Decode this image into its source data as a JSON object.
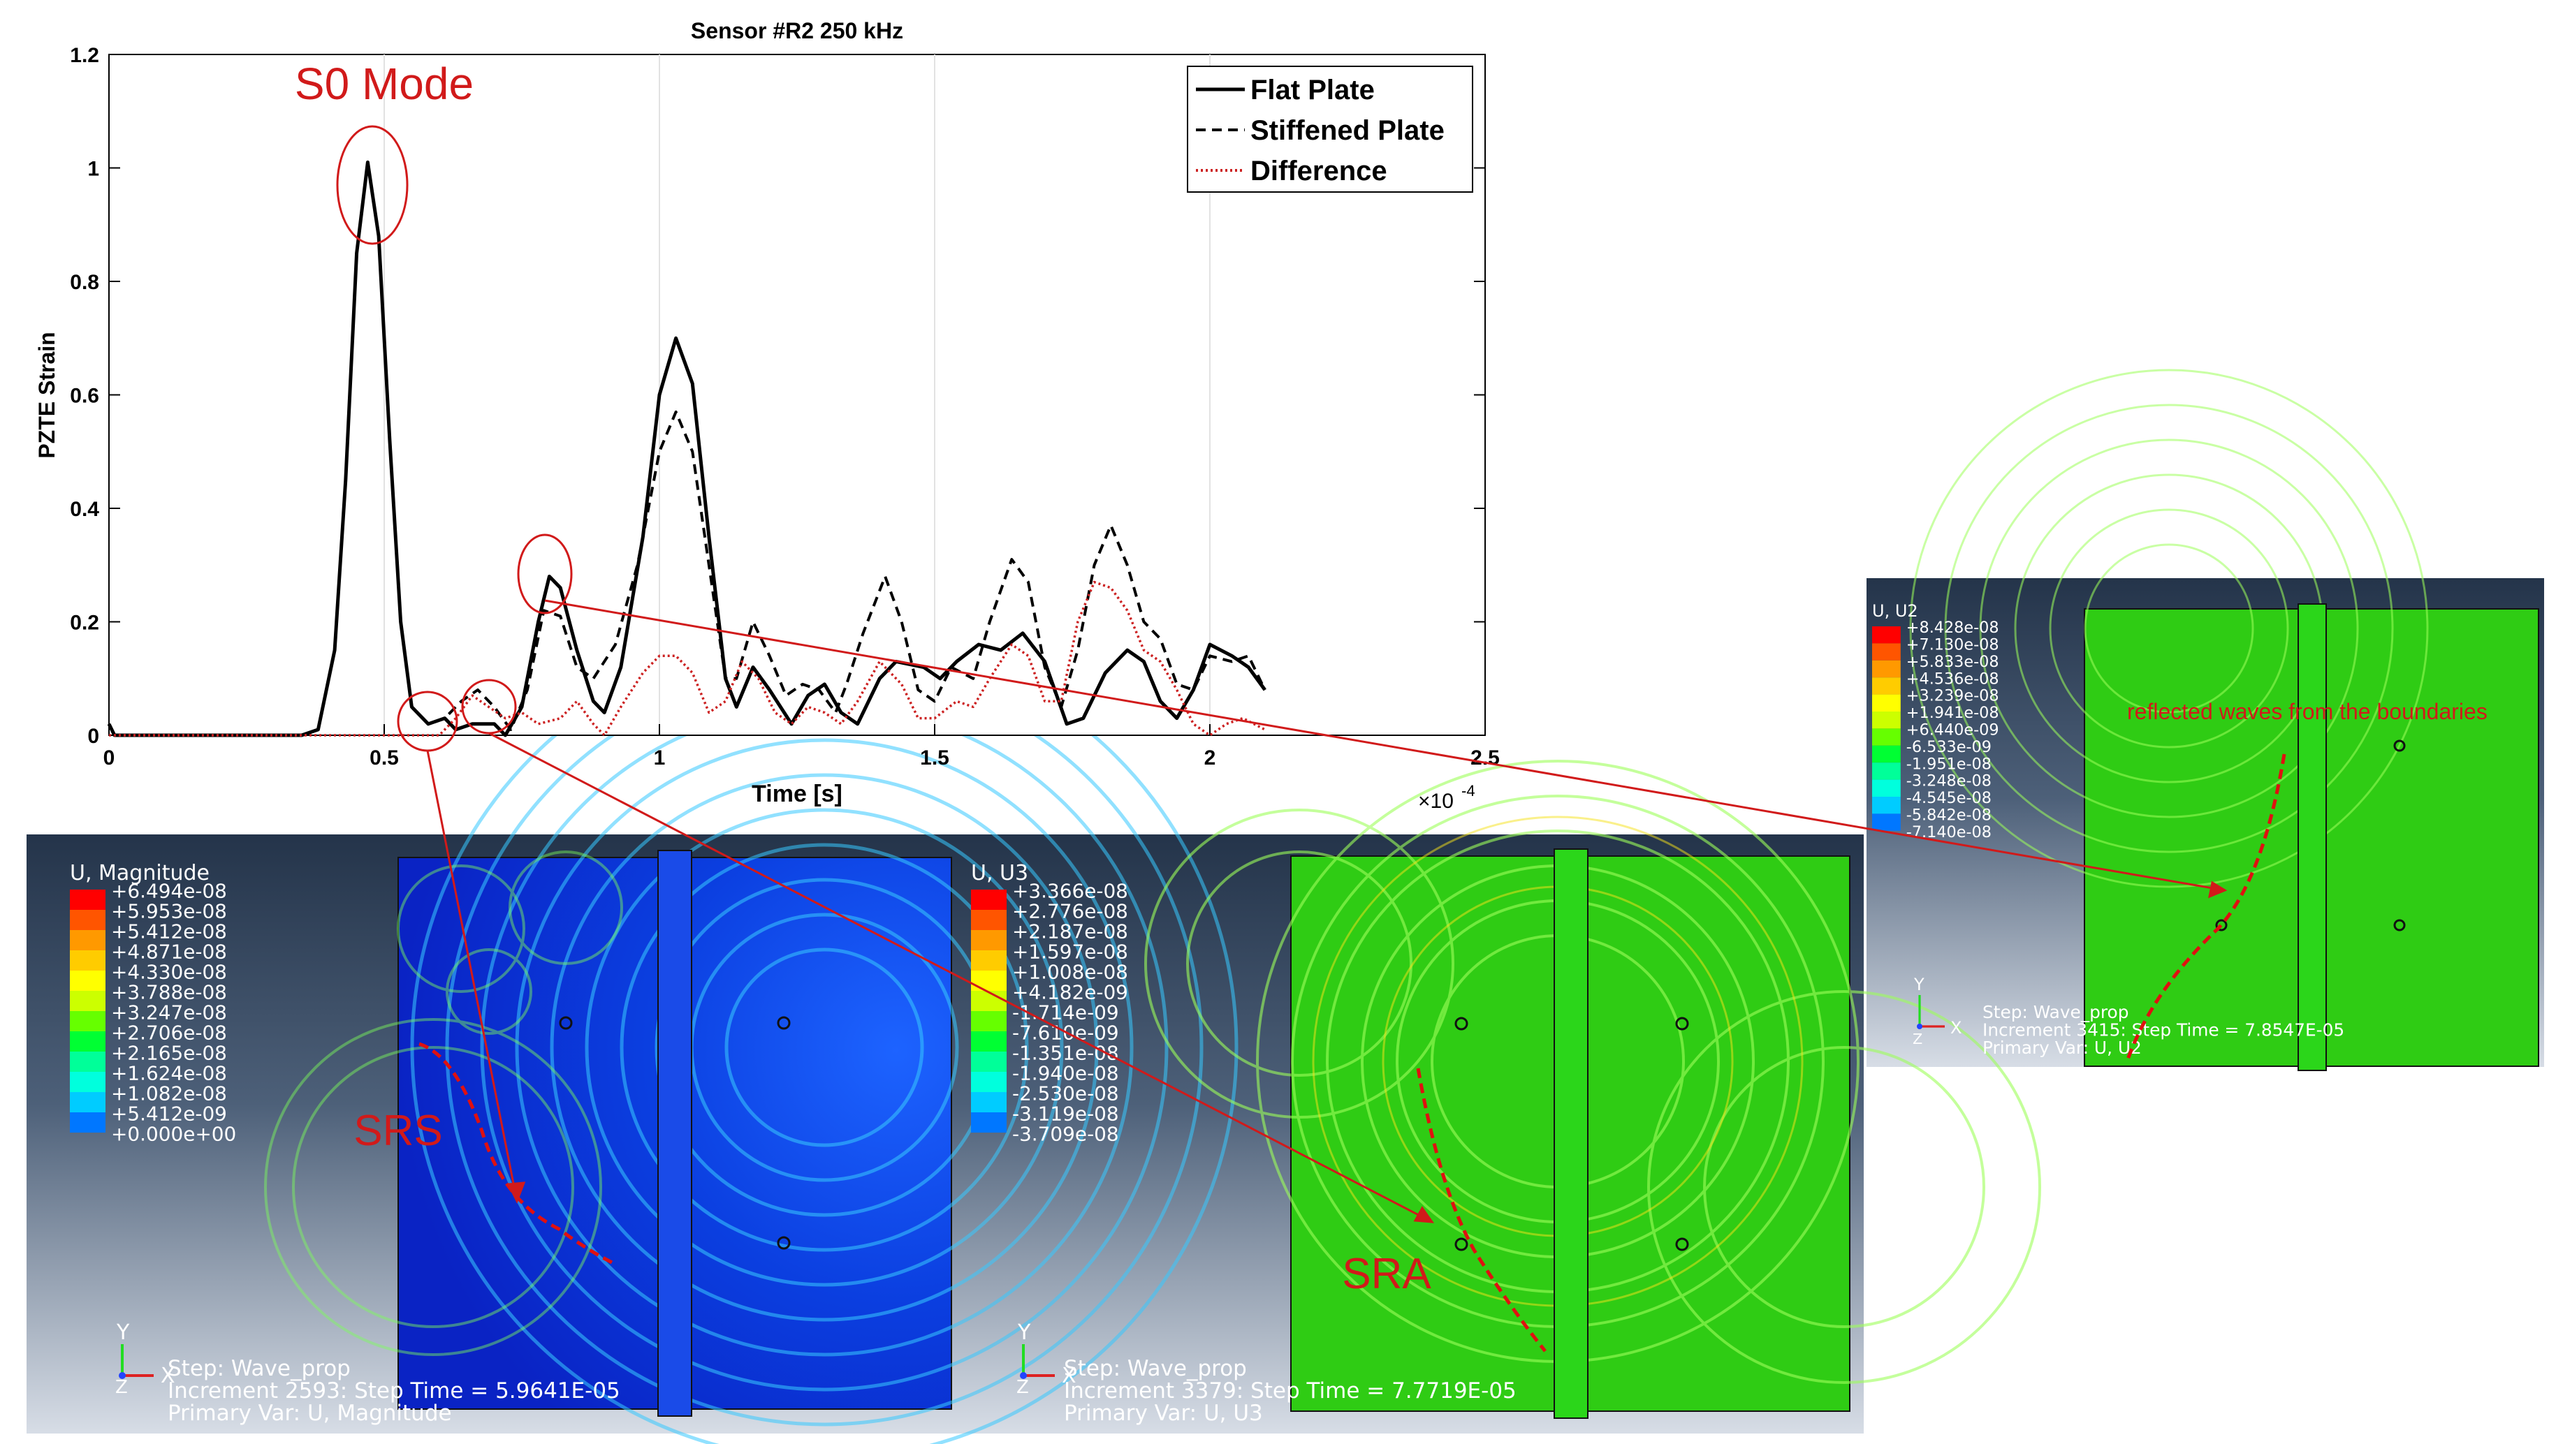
{
  "chart_data": {
    "type": "line",
    "title": "Sensor #R2 250 kHz",
    "xlabel": "Time [s]",
    "ylabel": "PZTE Strain",
    "x_exponent_label": "×10",
    "x_exponent_power": "-4",
    "xlim": [
      0,
      2.5
    ],
    "ylim": [
      0,
      1.2
    ],
    "xticks": [
      0,
      0.5,
      1,
      1.5,
      2,
      2.5
    ],
    "xtick_labels": [
      "0",
      "0.5",
      "1",
      "1.5",
      "2",
      "2.5"
    ],
    "yticks": [
      0,
      0.2,
      0.4,
      0.6,
      0.8,
      1,
      1.2
    ],
    "ytick_labels": [
      "0",
      "0.2",
      "0.4",
      "0.6",
      "0.8",
      "1",
      "1.2"
    ],
    "grid": "x",
    "legend_position": "top-right",
    "series": [
      {
        "name": "Flat Plate",
        "color": "#000000",
        "style": "solid",
        "points": [
          [
            0,
            0.02
          ],
          [
            0.01,
            0.0
          ],
          [
            0.2,
            0.0
          ],
          [
            0.35,
            0.0
          ],
          [
            0.38,
            0.01
          ],
          [
            0.41,
            0.15
          ],
          [
            0.43,
            0.45
          ],
          [
            0.45,
            0.85
          ],
          [
            0.47,
            1.01
          ],
          [
            0.49,
            0.88
          ],
          [
            0.51,
            0.52
          ],
          [
            0.53,
            0.2
          ],
          [
            0.55,
            0.05
          ],
          [
            0.58,
            0.02
          ],
          [
            0.61,
            0.03
          ],
          [
            0.63,
            0.01
          ],
          [
            0.66,
            0.02
          ],
          [
            0.7,
            0.02
          ],
          [
            0.72,
            0.0
          ],
          [
            0.75,
            0.05
          ],
          [
            0.78,
            0.2
          ],
          [
            0.8,
            0.28
          ],
          [
            0.82,
            0.26
          ],
          [
            0.85,
            0.15
          ],
          [
            0.88,
            0.06
          ],
          [
            0.9,
            0.04
          ],
          [
            0.93,
            0.12
          ],
          [
            0.97,
            0.35
          ],
          [
            1.0,
            0.6
          ],
          [
            1.03,
            0.7
          ],
          [
            1.06,
            0.62
          ],
          [
            1.09,
            0.35
          ],
          [
            1.12,
            0.1
          ],
          [
            1.14,
            0.05
          ],
          [
            1.17,
            0.12
          ],
          [
            1.2,
            0.08
          ],
          [
            1.24,
            0.02
          ],
          [
            1.27,
            0.07
          ],
          [
            1.3,
            0.09
          ],
          [
            1.33,
            0.04
          ],
          [
            1.36,
            0.02
          ],
          [
            1.4,
            0.1
          ],
          [
            1.43,
            0.13
          ],
          [
            1.48,
            0.12
          ],
          [
            1.51,
            0.1
          ],
          [
            1.54,
            0.13
          ],
          [
            1.58,
            0.16
          ],
          [
            1.62,
            0.15
          ],
          [
            1.66,
            0.18
          ],
          [
            1.7,
            0.13
          ],
          [
            1.74,
            0.02
          ],
          [
            1.77,
            0.03
          ],
          [
            1.81,
            0.11
          ],
          [
            1.85,
            0.15
          ],
          [
            1.88,
            0.13
          ],
          [
            1.91,
            0.06
          ],
          [
            1.94,
            0.03
          ],
          [
            1.97,
            0.08
          ],
          [
            2.0,
            0.16
          ],
          [
            2.04,
            0.14
          ],
          [
            2.07,
            0.12
          ],
          [
            2.1,
            0.08
          ]
        ]
      },
      {
        "name": "Stiffened Plate",
        "color": "#000000",
        "style": "dashed",
        "points": [
          [
            0,
            0.02
          ],
          [
            0.01,
            0.0
          ],
          [
            0.2,
            0.0
          ],
          [
            0.35,
            0.0
          ],
          [
            0.38,
            0.01
          ],
          [
            0.41,
            0.15
          ],
          [
            0.43,
            0.45
          ],
          [
            0.45,
            0.85
          ],
          [
            0.47,
            1.01
          ],
          [
            0.49,
            0.88
          ],
          [
            0.51,
            0.52
          ],
          [
            0.53,
            0.2
          ],
          [
            0.55,
            0.05
          ],
          [
            0.58,
            0.02
          ],
          [
            0.61,
            0.03
          ],
          [
            0.64,
            0.06
          ],
          [
            0.67,
            0.08
          ],
          [
            0.7,
            0.05
          ],
          [
            0.73,
            0.01
          ],
          [
            0.76,
            0.08
          ],
          [
            0.79,
            0.22
          ],
          [
            0.82,
            0.21
          ],
          [
            0.85,
            0.12
          ],
          [
            0.88,
            0.1
          ],
          [
            0.92,
            0.16
          ],
          [
            0.96,
            0.3
          ],
          [
            1.0,
            0.5
          ],
          [
            1.03,
            0.57
          ],
          [
            1.06,
            0.5
          ],
          [
            1.09,
            0.3
          ],
          [
            1.12,
            0.1
          ],
          [
            1.14,
            0.1
          ],
          [
            1.17,
            0.2
          ],
          [
            1.2,
            0.14
          ],
          [
            1.23,
            0.07
          ],
          [
            1.26,
            0.09
          ],
          [
            1.29,
            0.08
          ],
          [
            1.32,
            0.04
          ],
          [
            1.34,
            0.09
          ],
          [
            1.37,
            0.18
          ],
          [
            1.41,
            0.28
          ],
          [
            1.44,
            0.2
          ],
          [
            1.47,
            0.08
          ],
          [
            1.5,
            0.06
          ],
          [
            1.53,
            0.12
          ],
          [
            1.57,
            0.1
          ],
          [
            1.6,
            0.2
          ],
          [
            1.64,
            0.31
          ],
          [
            1.67,
            0.27
          ],
          [
            1.7,
            0.12
          ],
          [
            1.73,
            0.05
          ],
          [
            1.76,
            0.15
          ],
          [
            1.79,
            0.3
          ],
          [
            1.82,
            0.37
          ],
          [
            1.85,
            0.3
          ],
          [
            1.88,
            0.2
          ],
          [
            1.91,
            0.17
          ],
          [
            1.94,
            0.09
          ],
          [
            1.97,
            0.08
          ],
          [
            2.0,
            0.14
          ],
          [
            2.04,
            0.13
          ],
          [
            2.07,
            0.14
          ],
          [
            2.1,
            0.08
          ]
        ]
      },
      {
        "name": "Difference",
        "color": "#cc2222",
        "style": "dotted",
        "points": [
          [
            0,
            0.0
          ],
          [
            0.6,
            0.0
          ],
          [
            0.63,
            0.03
          ],
          [
            0.66,
            0.07
          ],
          [
            0.69,
            0.05
          ],
          [
            0.72,
            0.03
          ],
          [
            0.75,
            0.04
          ],
          [
            0.78,
            0.02
          ],
          [
            0.82,
            0.03
          ],
          [
            0.85,
            0.06
          ],
          [
            0.88,
            0.02
          ],
          [
            0.9,
            0.0
          ],
          [
            0.93,
            0.05
          ],
          [
            0.97,
            0.11
          ],
          [
            1.0,
            0.14
          ],
          [
            1.03,
            0.14
          ],
          [
            1.06,
            0.11
          ],
          [
            1.09,
            0.04
          ],
          [
            1.12,
            0.06
          ],
          [
            1.15,
            0.13
          ],
          [
            1.18,
            0.1
          ],
          [
            1.21,
            0.04
          ],
          [
            1.24,
            0.02
          ],
          [
            1.27,
            0.05
          ],
          [
            1.3,
            0.04
          ],
          [
            1.33,
            0.02
          ],
          [
            1.36,
            0.06
          ],
          [
            1.4,
            0.13
          ],
          [
            1.44,
            0.09
          ],
          [
            1.47,
            0.03
          ],
          [
            1.5,
            0.03
          ],
          [
            1.54,
            0.06
          ],
          [
            1.57,
            0.05
          ],
          [
            1.6,
            0.1
          ],
          [
            1.64,
            0.16
          ],
          [
            1.67,
            0.14
          ],
          [
            1.7,
            0.06
          ],
          [
            1.73,
            0.06
          ],
          [
            1.76,
            0.2
          ],
          [
            1.79,
            0.27
          ],
          [
            1.82,
            0.26
          ],
          [
            1.85,
            0.22
          ],
          [
            1.88,
            0.15
          ],
          [
            1.91,
            0.13
          ],
          [
            1.94,
            0.08
          ],
          [
            1.97,
            0.02
          ],
          [
            2.0,
            0.0
          ],
          [
            2.03,
            0.02
          ],
          [
            2.06,
            0.03
          ],
          [
            2.1,
            0.01
          ]
        ]
      }
    ],
    "annotations": {
      "s0_mode": "S0 Mode",
      "srs": "SRS",
      "sra": "SRA",
      "reflected": "reflected waves from the boundaries"
    }
  },
  "panels": [
    {
      "id": "magnitude",
      "legend_title": "U, Magnitude",
      "legend_values": [
        "+6.494e-08",
        "+5.953e-08",
        "+5.412e-08",
        "+4.871e-08",
        "+4.330e-08",
        "+3.788e-08",
        "+3.247e-08",
        "+2.706e-08",
        "+2.165e-08",
        "+1.624e-08",
        "+1.082e-08",
        "+5.412e-09",
        "+0.000e+00"
      ],
      "step_line": "Step: Wave_prop",
      "increment_line": "Increment      2593: Step Time =    5.9641E-05",
      "primary_line": "Primary Var: U, Magnitude",
      "axis_y": "Y",
      "axis_x": "X",
      "axis_z": "Z",
      "fill_color": "#0a2fd6"
    },
    {
      "id": "u3",
      "legend_title": "U, U3",
      "legend_values": [
        "+3.366e-08",
        "+2.776e-08",
        "+2.187e-08",
        "+1.597e-08",
        "+1.008e-08",
        "+4.182e-09",
        "-1.714e-09",
        "-7.610e-09",
        "-1.351e-08",
        "-1.940e-08",
        "-2.530e-08",
        "-3.119e-08",
        "-3.709e-08"
      ],
      "step_line": "Step: Wave_prop",
      "increment_line": "Increment      3379: Step Time =    7.7719E-05",
      "primary_line": "Primary Var: U, U3",
      "axis_y": "Y",
      "axis_x": "X",
      "axis_z": "Z",
      "fill_color": "#22cc11"
    },
    {
      "id": "u2",
      "legend_title": "U, U2",
      "legend_values": [
        "+8.428e-08",
        "+7.130e-08",
        "+5.833e-08",
        "+4.536e-08",
        "+3.239e-08",
        "+1.941e-08",
        "+6.440e-09",
        "-6.533e-09",
        "-1.951e-08",
        "-3.248e-08",
        "-4.545e-08",
        "-5.842e-08",
        "-7.140e-08"
      ],
      "step_line": "Step: Wave_prop",
      "increment_line": "Increment      3415: Step Time =    7.8547E-05",
      "primary_line": "Primary Var: U, U2",
      "axis_y": "Y",
      "axis_x": "X",
      "axis_z": "Z",
      "fill_color": "#22cc11"
    }
  ],
  "contour_colors": [
    "#ff0000",
    "#ff5500",
    "#ff9900",
    "#ffcc00",
    "#ffff00",
    "#ccff00",
    "#66ff00",
    "#00ff33",
    "#00ff99",
    "#00ffdd",
    "#00ccff",
    "#0077ff",
    "#0022ff"
  ]
}
